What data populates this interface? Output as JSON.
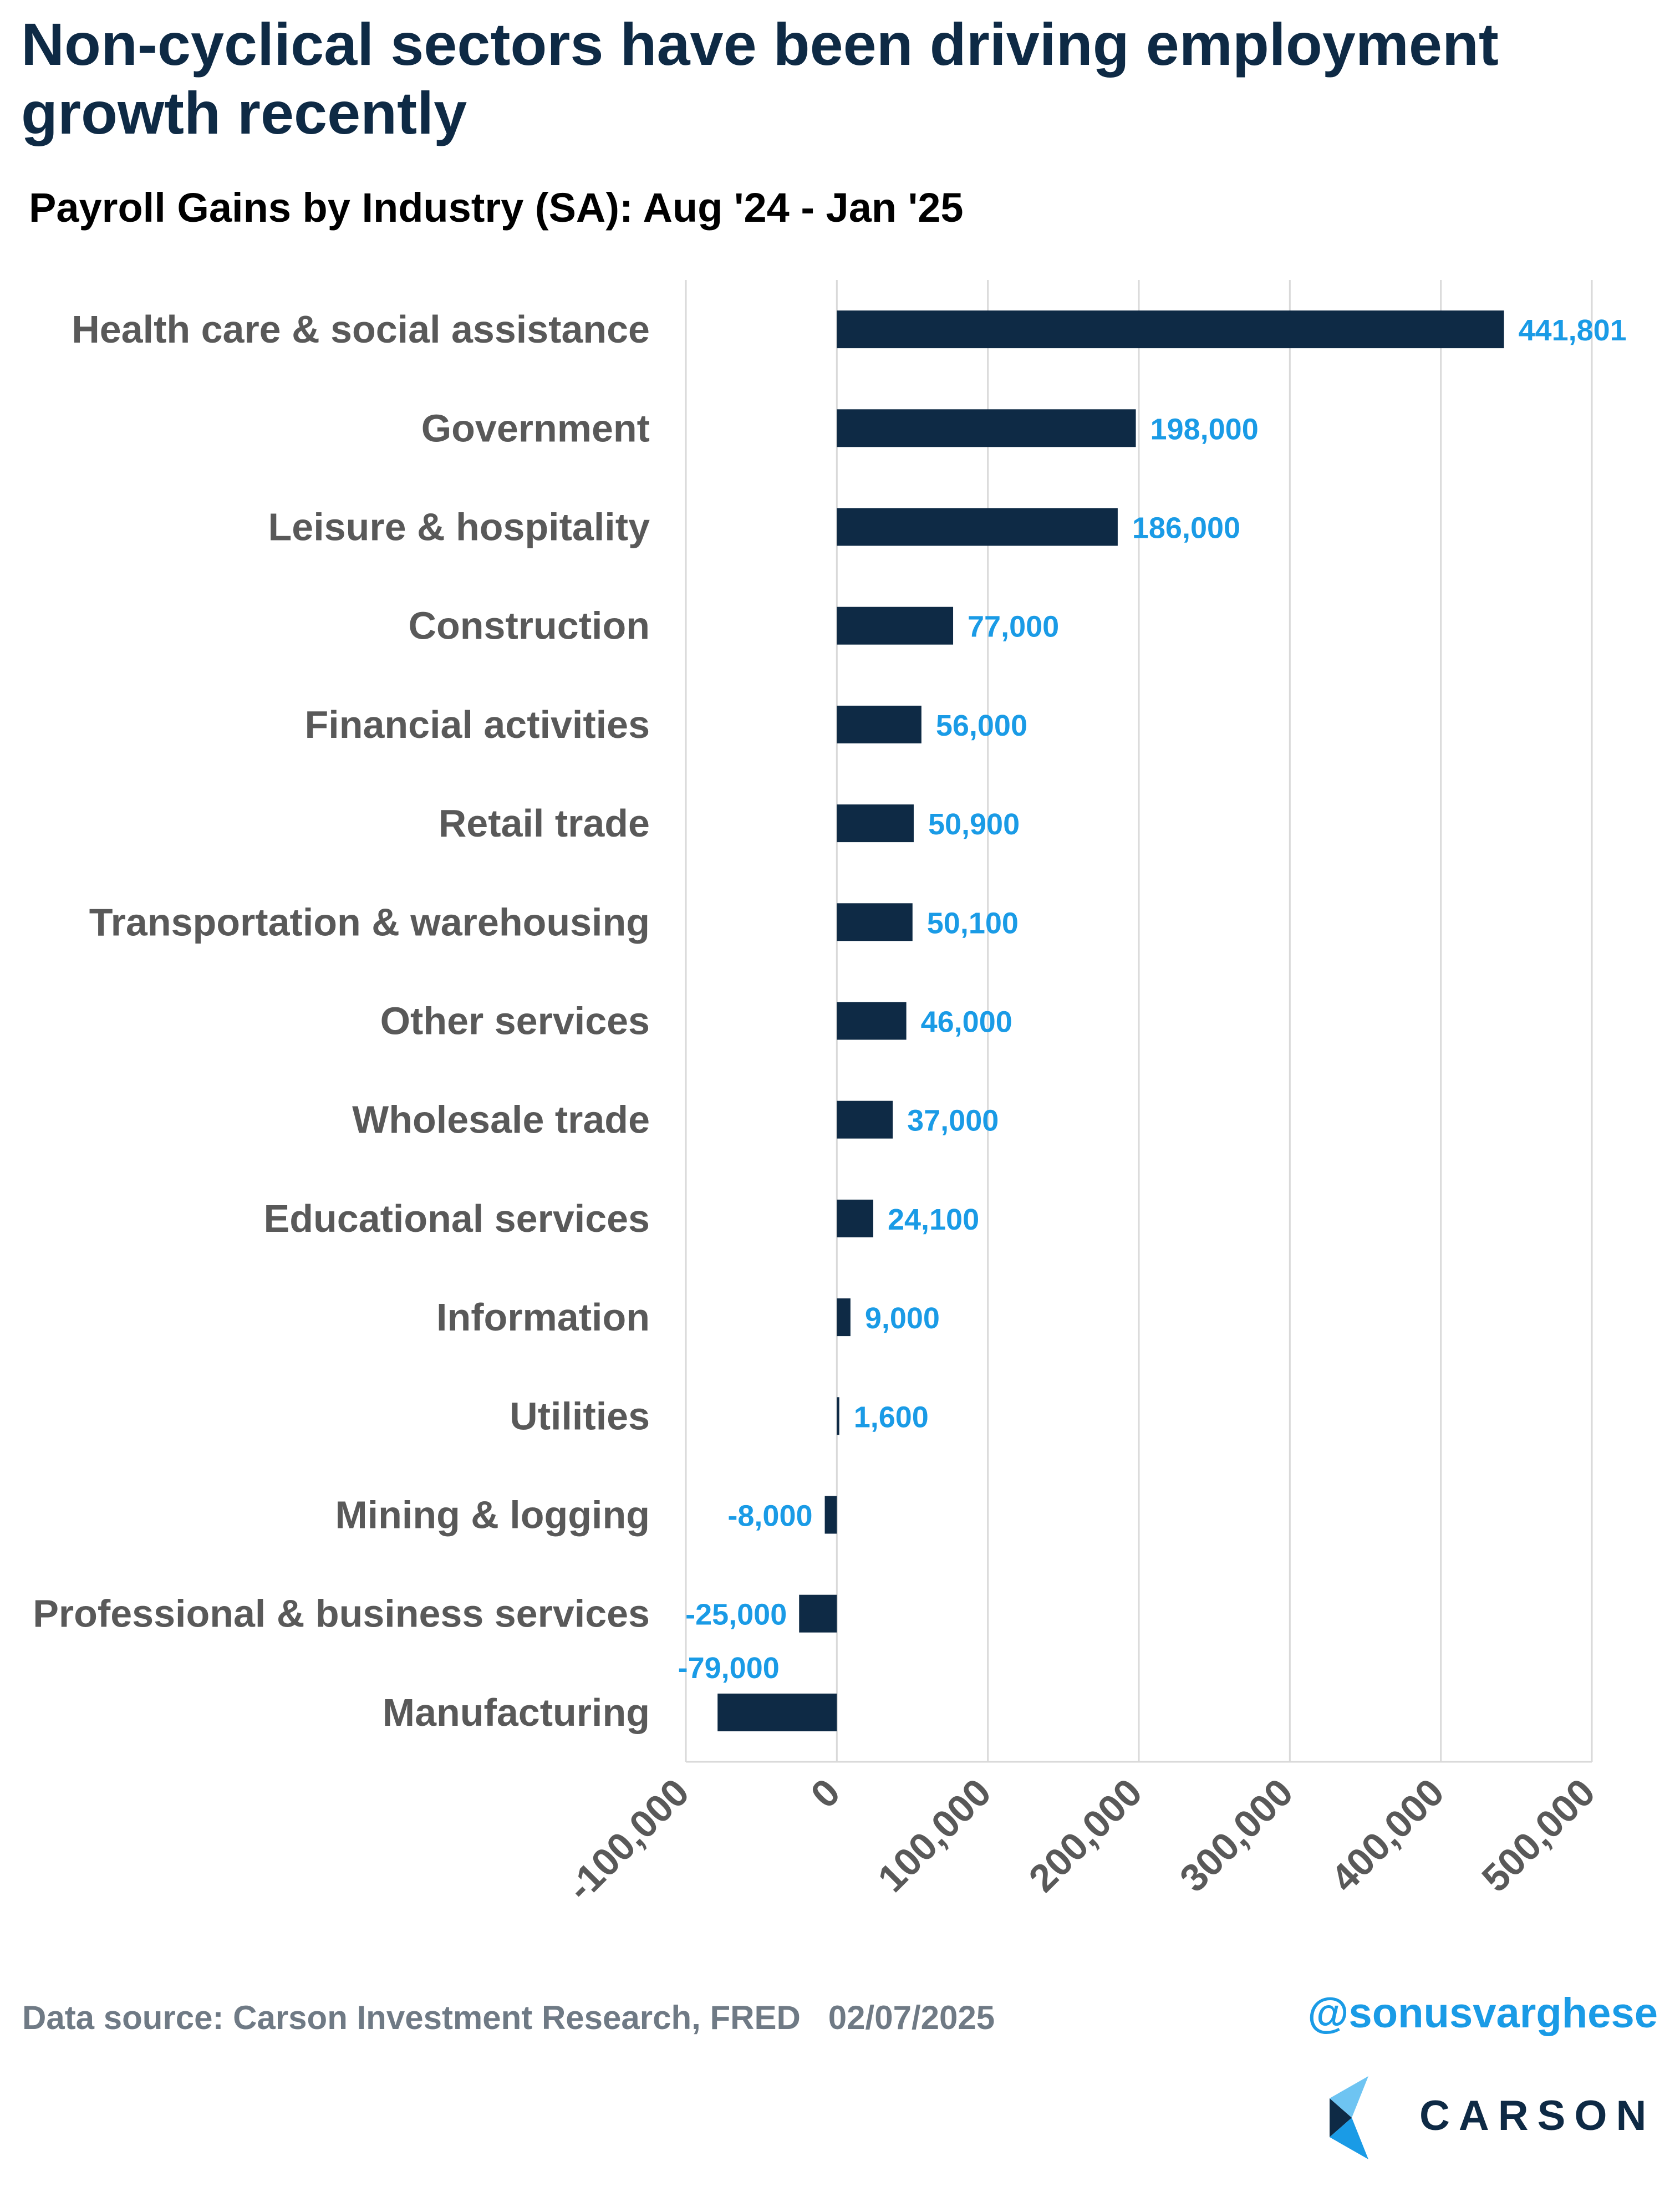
{
  "title": "Non-cyclical sectors have been driving employment growth recently",
  "subtitle": "Payroll Gains by Industry (SA): Aug '24 - Jan '25",
  "chart_data": {
    "type": "bar",
    "orientation": "horizontal",
    "categories": [
      "Health care & social assistance",
      "Government",
      "Leisure & hospitality",
      "Construction",
      "Financial activities",
      "Retail trade",
      "Transportation & warehousing",
      "Other services",
      "Wholesale trade",
      "Educational services",
      "Information",
      "Utilities",
      "Mining & logging",
      "Professional & business services",
      "Manufacturing"
    ],
    "values": [
      441801,
      198000,
      186000,
      77000,
      56000,
      50900,
      50100,
      46000,
      37000,
      24100,
      9000,
      1600,
      -8000,
      -25000,
      -79000
    ],
    "data_labels": [
      "441,801",
      "198,000",
      "186,000",
      "77,000",
      "56,000",
      "50,900",
      "50,100",
      "46,000",
      "37,000",
      "24,100",
      "9,000",
      "1,600",
      "-8,000",
      "-25,000",
      "-79,000"
    ],
    "xlim": [
      -100000,
      500000
    ],
    "xticks": [
      -100000,
      0,
      100000,
      200000,
      300000,
      400000,
      500000
    ],
    "xtick_labels": [
      "-100,000",
      "0",
      "100,000",
      "200,000",
      "300,000",
      "400,000",
      "500,000"
    ],
    "grid": true,
    "legend": "none",
    "colors": {
      "bar": "#0e2a45",
      "data_label": "#1a9be6",
      "category_label": "#595959",
      "tick_label": "#595959",
      "grid": "#d9d9d9"
    }
  },
  "footer": {
    "source": "Data source: Carson Investment Research, FRED   02/07/2025",
    "handle": "@sonusvarghese",
    "logo_text": "CARSON"
  },
  "logo_colors": {
    "dark": "#0e2a45",
    "light": "#6ec4f2",
    "mid": "#1a9be6"
  }
}
